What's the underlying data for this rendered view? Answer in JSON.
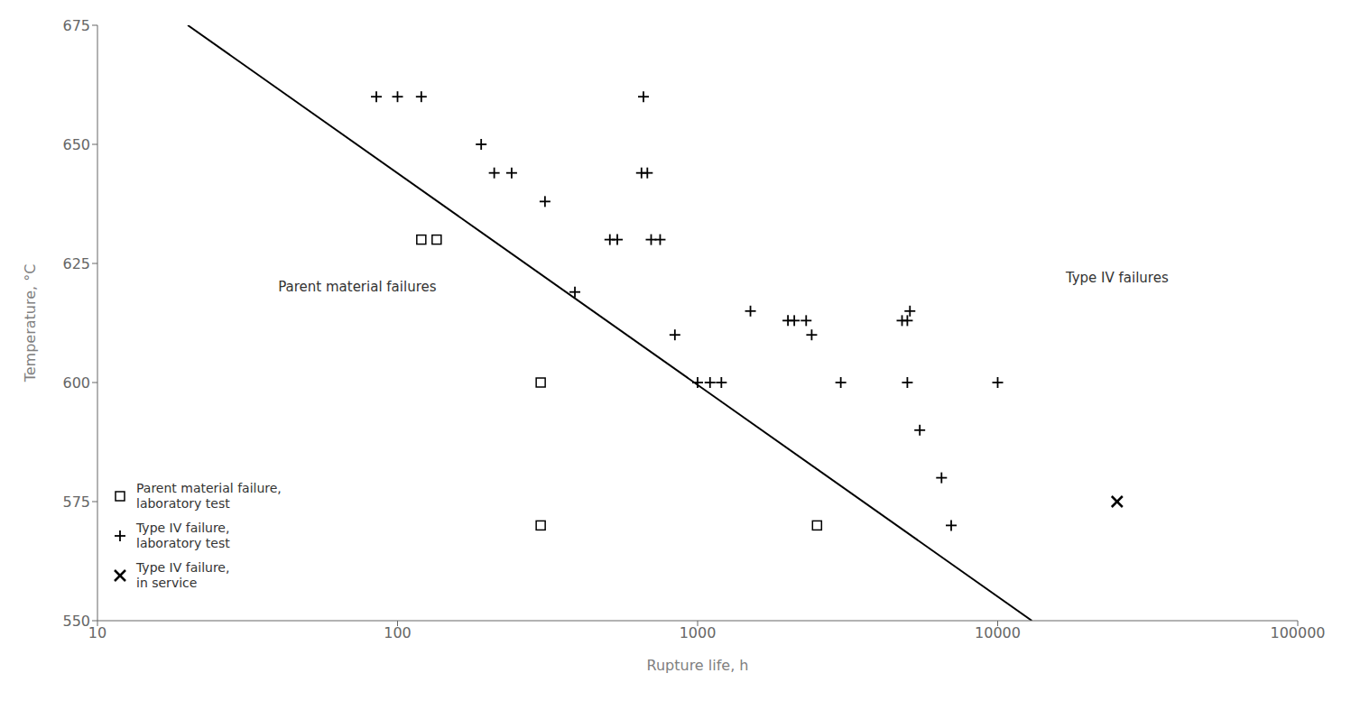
{
  "chart_data": {
    "type": "scatter",
    "xlabel": "Rupture life, h",
    "ylabel": "Temperature, °C",
    "log": "x",
    "xlim": [
      10,
      100000
    ],
    "xticks": [
      10,
      100,
      1000,
      10000,
      100000
    ],
    "ylim": [
      550,
      675
    ],
    "yticks": [
      550,
      575,
      600,
      625,
      650,
      675
    ],
    "grid": false,
    "legend": "lower left",
    "series": [
      {
        "name": "Parent material failure,\nlaboratory test",
        "type": "scatter",
        "marker": "square",
        "color": "#000000",
        "x": [
          120,
          135,
          300,
          300,
          2500
        ],
        "values": [
          630,
          630,
          600,
          570,
          570
        ]
      },
      {
        "name": "Type IV failure,\nlaboratory test",
        "type": "scatter",
        "marker": "plus",
        "color": "#000000",
        "x": [
          85,
          100,
          120,
          190,
          210,
          240,
          310,
          390,
          510,
          540,
          700,
          750,
          650,
          680,
          840,
          1000,
          1100,
          1200,
          1500,
          2000,
          2100,
          2300,
          2400,
          3000,
          5000,
          4800,
          5000,
          5100,
          5500,
          6500,
          7000,
          10000,
          660
        ],
        "values": [
          660,
          660,
          660,
          650,
          644,
          644,
          638,
          619,
          630,
          630,
          630,
          630,
          644,
          644,
          610,
          600,
          600,
          600,
          615,
          613,
          613,
          613,
          610,
          600,
          600,
          613,
          613,
          615,
          590,
          580,
          570,
          600,
          660
        ]
      },
      {
        "name": "Type IV failure,\nin service",
        "type": "scatter",
        "marker": "x",
        "color": "#000000",
        "x": [
          25000
        ],
        "values": [
          575
        ]
      },
      {
        "type": "line",
        "color": "#000000",
        "x": [
          20,
          13000
        ],
        "values": [
          675,
          550
        ]
      }
    ],
    "annotations": [
      {
        "text": "Parent material failures",
        "x": 40,
        "y": 620
      },
      {
        "text": "Type IV failures",
        "x": 25000,
        "y": 622
      }
    ]
  }
}
